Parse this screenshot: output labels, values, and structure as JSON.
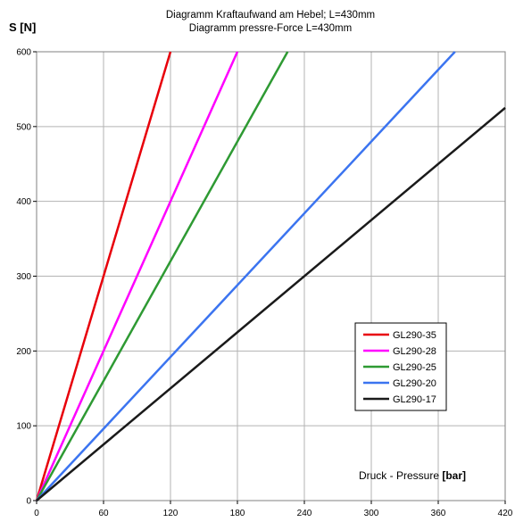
{
  "chart_data": {
    "type": "line",
    "title": "Diagramm Kraftaufwand am Hebel; L=430mm",
    "subtitle": "Diagramm pressre-Force L=430mm",
    "ylabel": "S [N]",
    "xlabel_prefix": "Druck - Pressure ",
    "xlabel_unit": "[bar]",
    "xlim": [
      0,
      420
    ],
    "ylim": [
      0,
      600
    ],
    "xticks": [
      0,
      60,
      120,
      180,
      240,
      300,
      360,
      420
    ],
    "yticks": [
      0,
      100,
      200,
      300,
      400,
      500,
      600
    ],
    "grid": true,
    "legend_position": "right",
    "series": [
      {
        "name": "GL290-35",
        "color": "#e8000b",
        "x": [
          0,
          120
        ],
        "y": [
          0,
          600
        ]
      },
      {
        "name": "GL290-28",
        "color": "#ff00ff",
        "x": [
          0,
          180
        ],
        "y": [
          0,
          600
        ]
      },
      {
        "name": "GL290-25",
        "color": "#2e9a33",
        "x": [
          0,
          225
        ],
        "y": [
          0,
          600
        ]
      },
      {
        "name": "GL290-20",
        "color": "#3b74f0",
        "x": [
          0,
          375
        ],
        "y": [
          0,
          600
        ]
      },
      {
        "name": "GL290-17",
        "color": "#1a1a1a",
        "x": [
          0,
          420
        ],
        "y": [
          0,
          525
        ]
      }
    ]
  }
}
